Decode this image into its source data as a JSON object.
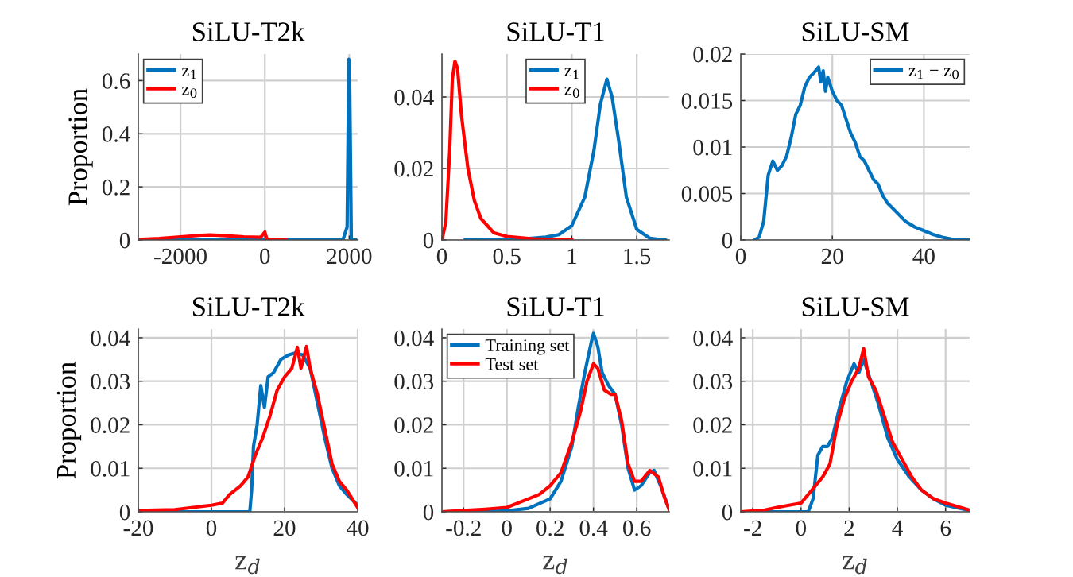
{
  "chart_data": [
    {
      "type": "line",
      "title": "SiLU-T2k",
      "ylabel": "Proportion",
      "xlim": [
        -3000,
        2200
      ],
      "xticks": [
        -2000,
        0,
        2000
      ],
      "ylim": [
        0,
        0.7
      ],
      "yticks": [
        0,
        0.2,
        0.4,
        0.6
      ],
      "grid": true,
      "legend": "top left",
      "series": [
        {
          "name": "z$_{1}$",
          "color": "#0072bd",
          "x": [
            -3000,
            1850,
            1950,
            1990,
            2010,
            2050,
            2150
          ],
          "values": [
            0,
            0,
            0.05,
            0.68,
            0.6,
            0,
            0
          ]
        },
        {
          "name": "z$_{0}$",
          "color": "#ff0000",
          "x": [
            -3000,
            -2500,
            -2000,
            -1500,
            -1300,
            -1000,
            -500,
            -100,
            0,
            50,
            150,
            500
          ],
          "values": [
            0.002,
            0.006,
            0.012,
            0.018,
            0.019,
            0.017,
            0.012,
            0.01,
            0.03,
            0.003,
            0,
            0
          ]
        }
      ]
    },
    {
      "type": "line",
      "title": "SiLU-T1",
      "xlim": [
        0,
        1.75
      ],
      "xticks": [
        0,
        0.5,
        1,
        1.5
      ],
      "ylim": [
        0,
        0.052
      ],
      "yticks": [
        0,
        0.02,
        0.04
      ],
      "grid": true,
      "legend": "top center",
      "series": [
        {
          "name": "z$_{1}$",
          "color": "#0072bd",
          "x": [
            0.18,
            0.6,
            0.8,
            0.9,
            1.0,
            1.1,
            1.17,
            1.22,
            1.27,
            1.31,
            1.36,
            1.42,
            1.5,
            1.6,
            1.72
          ],
          "values": [
            0,
            0.0002,
            0.0008,
            0.0015,
            0.004,
            0.012,
            0.025,
            0.038,
            0.045,
            0.04,
            0.028,
            0.012,
            0.003,
            0.0005,
            0
          ]
        },
        {
          "name": "z$_{0}$",
          "color": "#ff0000",
          "x": [
            0,
            0.03,
            0.06,
            0.08,
            0.1,
            0.12,
            0.15,
            0.2,
            0.25,
            0.3,
            0.4,
            0.5,
            0.7,
            1.0
          ],
          "values": [
            0,
            0.005,
            0.025,
            0.045,
            0.05,
            0.048,
            0.035,
            0.02,
            0.011,
            0.006,
            0.002,
            0.001,
            0.0003,
            0
          ]
        }
      ]
    },
    {
      "type": "line",
      "title": "SiLU-SM",
      "xlim": [
        0,
        50
      ],
      "xticks": [
        0,
        20,
        40
      ],
      "ylim": [
        0,
        0.02
      ],
      "yticks": [
        0,
        0.005,
        0.01,
        0.015,
        0.02
      ],
      "grid": true,
      "legend": "top right",
      "series": [
        {
          "name": "z$_{1}$ − z$_{0}$",
          "color": "#0072bd",
          "x": [
            3,
            4,
            5,
            6,
            7,
            8,
            9,
            10,
            11,
            12,
            13,
            14,
            15,
            16,
            17,
            17.5,
            18,
            18.5,
            19,
            20,
            21,
            22,
            23,
            24,
            25,
            26,
            27,
            28,
            29,
            30,
            31,
            32,
            34,
            36,
            38,
            40,
            42,
            44,
            46,
            50
          ],
          "values": [
            0,
            0.0003,
            0.002,
            0.007,
            0.0085,
            0.0075,
            0.008,
            0.009,
            0.011,
            0.0135,
            0.0145,
            0.0165,
            0.0175,
            0.018,
            0.0186,
            0.017,
            0.0182,
            0.016,
            0.0175,
            0.016,
            0.015,
            0.0145,
            0.013,
            0.0115,
            0.0105,
            0.009,
            0.0085,
            0.0075,
            0.0065,
            0.006,
            0.0048,
            0.004,
            0.003,
            0.002,
            0.0014,
            0.001,
            0.0006,
            0.0003,
            0.0001,
            0
          ]
        }
      ]
    },
    {
      "type": "line",
      "title": "SiLU-T2k",
      "ylabel": "Proportion",
      "xlabel": "z$_{d}$",
      "xlim": [
        -20,
        40
      ],
      "xticks": [
        -20,
        0,
        20,
        40
      ],
      "ylim": [
        0,
        0.042
      ],
      "yticks": [
        0,
        0.01,
        0.02,
        0.03,
        0.04
      ],
      "grid": true,
      "series": [
        {
          "color": "#0072bd",
          "x": [
            -20,
            10.5,
            11,
            11.5,
            12.5,
            13.5,
            14.5,
            15.5,
            17,
            19,
            21,
            23,
            25,
            27,
            29,
            31,
            33,
            35,
            37,
            40
          ],
          "values": [
            0,
            0,
            0.005,
            0.015,
            0.02,
            0.029,
            0.024,
            0.031,
            0.032,
            0.035,
            0.036,
            0.0365,
            0.036,
            0.033,
            0.025,
            0.017,
            0.01,
            0.006,
            0.004,
            0.0015
          ]
        },
        {
          "color": "#ff0000",
          "x": [
            -20,
            -10,
            -5,
            0,
            3,
            5,
            8,
            10,
            12,
            14,
            16,
            18,
            20,
            22,
            23.5,
            24.5,
            26,
            27,
            29,
            31,
            33,
            35,
            37,
            40
          ],
          "values": [
            0.0003,
            0.0005,
            0.001,
            0.0015,
            0.002,
            0.004,
            0.006,
            0.008,
            0.013,
            0.017,
            0.022,
            0.028,
            0.031,
            0.033,
            0.0378,
            0.033,
            0.038,
            0.033,
            0.027,
            0.019,
            0.011,
            0.007,
            0.005,
            0.001
          ]
        }
      ]
    },
    {
      "type": "line",
      "title": "SiLU-T1",
      "xlabel": "z$_{d}$",
      "xlim": [
        -0.3,
        0.75
      ],
      "xticks": [
        -0.2,
        0,
        0.2,
        0.4,
        0.6
      ],
      "ylim": [
        0,
        0.042
      ],
      "yticks": [
        0,
        0.01,
        0.02,
        0.03,
        0.04
      ],
      "grid": true,
      "legend": "top left",
      "series": [
        {
          "name": "Training set",
          "color": "#0072bd",
          "x": [
            -0.3,
            0,
            0.1,
            0.2,
            0.25,
            0.3,
            0.33,
            0.36,
            0.39,
            0.4,
            0.42,
            0.44,
            0.47,
            0.5,
            0.53,
            0.56,
            0.59,
            0.62,
            0.66,
            0.68,
            0.71,
            0.75
          ],
          "values": [
            0,
            0.0002,
            0.0008,
            0.003,
            0.007,
            0.015,
            0.024,
            0.032,
            0.039,
            0.041,
            0.038,
            0.032,
            0.029,
            0.027,
            0.02,
            0.01,
            0.005,
            0.006,
            0.009,
            0.0095,
            0.006,
            0.0005
          ]
        },
        {
          "name": "Test set",
          "color": "#ff0000",
          "x": [
            -0.3,
            -0.2,
            -0.1,
            0,
            0.1,
            0.15,
            0.2,
            0.25,
            0.3,
            0.34,
            0.37,
            0.4,
            0.42,
            0.45,
            0.48,
            0.5,
            0.53,
            0.56,
            0.59,
            0.62,
            0.66,
            0.7,
            0.73,
            0.75
          ],
          "values": [
            0,
            0.0003,
            0.0006,
            0.001,
            0.003,
            0.004,
            0.006,
            0.009,
            0.016,
            0.023,
            0.03,
            0.034,
            0.033,
            0.028,
            0.027,
            0.027,
            0.021,
            0.011,
            0.007,
            0.007,
            0.0095,
            0.008,
            0.003,
            0.0005
          ]
        }
      ]
    },
    {
      "type": "line",
      "title": "SiLU-SM",
      "xlabel": "z$_{d}$",
      "xlim": [
        -2.5,
        7
      ],
      "xticks": [
        -2,
        0,
        2,
        4,
        6
      ],
      "ylim": [
        0,
        0.042
      ],
      "yticks": [
        0,
        0.01,
        0.02,
        0.03,
        0.04
      ],
      "grid": true,
      "series": [
        {
          "color": "#0072bd",
          "x": [
            -2.5,
            0.3,
            0.5,
            0.7,
            0.9,
            1.1,
            1.3,
            1.6,
            1.9,
            2.2,
            2.4,
            2.6,
            2.9,
            3.2,
            3.6,
            4,
            4.5,
            5,
            5.5,
            6,
            7
          ],
          "values": [
            0,
            0,
            0.003,
            0.013,
            0.015,
            0.015,
            0.017,
            0.024,
            0.03,
            0.034,
            0.032,
            0.035,
            0.03,
            0.025,
            0.017,
            0.012,
            0.008,
            0.005,
            0.003,
            0.0015,
            0.0003
          ]
        },
        {
          "color": "#ff0000",
          "x": [
            -2.5,
            -1.5,
            -1,
            -0.5,
            0,
            0.3,
            0.6,
            0.9,
            1.2,
            1.5,
            1.8,
            2.1,
            2.4,
            2.6,
            2.8,
            3.1,
            3.4,
            3.8,
            4.2,
            4.6,
            5,
            5.5,
            6,
            7
          ],
          "values": [
            0,
            0.0004,
            0.001,
            0.0015,
            0.002,
            0.004,
            0.006,
            0.008,
            0.011,
            0.02,
            0.026,
            0.03,
            0.033,
            0.0375,
            0.031,
            0.028,
            0.023,
            0.016,
            0.012,
            0.008,
            0.005,
            0.003,
            0.002,
            0.0004
          ]
        }
      ]
    }
  ]
}
